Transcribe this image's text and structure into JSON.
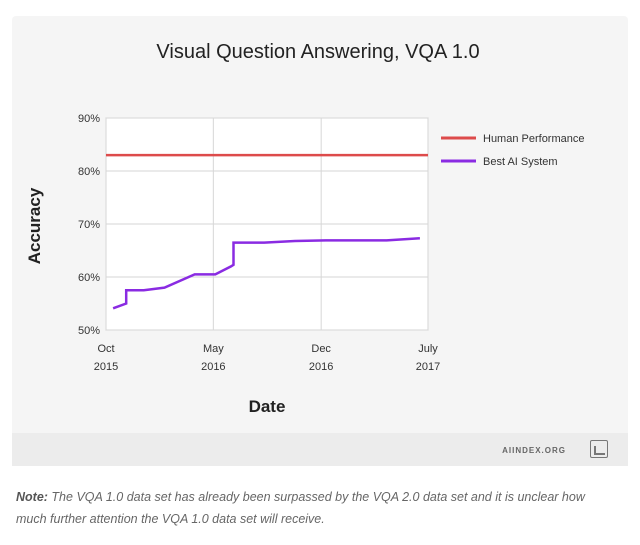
{
  "chart_data": {
    "type": "line",
    "title": "Visual Question Answering, VQA 1.0",
    "xlabel": "Date",
    "ylabel": "Accuracy",
    "x_ticks": [
      "Oct|2015",
      "May|2016",
      "Dec|2016",
      "July|2017"
    ],
    "y_ticks": [
      "50%",
      "60%",
      "70%",
      "80%",
      "90%"
    ],
    "ylim": [
      50,
      90
    ],
    "xlim": [
      "2015-10-01",
      "2017-07-01"
    ],
    "grid": true,
    "legend_position": "right",
    "series": [
      {
        "name": "Human Performance",
        "color": "#dd4b4b",
        "points": [
          [
            "2015-10-01",
            83.0
          ],
          [
            "2017-07-01",
            83.0
          ]
        ]
      },
      {
        "name": "Best AI System",
        "color": "#8a2be2",
        "points": [
          [
            "2015-10-15",
            54.1
          ],
          [
            "2015-11-10",
            55.0
          ],
          [
            "2015-11-10",
            57.5
          ],
          [
            "2015-12-15",
            57.5
          ],
          [
            "2016-01-25",
            58.0
          ],
          [
            "2016-03-25",
            60.5
          ],
          [
            "2016-05-05",
            60.5
          ],
          [
            "2016-06-05",
            62.0
          ],
          [
            "2016-06-10",
            62.3
          ],
          [
            "2016-06-10",
            66.5
          ],
          [
            "2016-08-10",
            66.5
          ],
          [
            "2016-10-10",
            66.8
          ],
          [
            "2016-12-10",
            66.9
          ],
          [
            "2017-02-10",
            66.9
          ],
          [
            "2017-04-10",
            66.9
          ],
          [
            "2017-06-15",
            67.3
          ]
        ]
      }
    ]
  },
  "branding": {
    "source_label": "AIINDEX.ORG"
  },
  "note": {
    "lead": "Note:",
    "text": " The VQA 1.0 data set has already been surpassed by the VQA 2.0 data set and it is unclear how much further attention the VQA 1.0 data set will receive."
  }
}
